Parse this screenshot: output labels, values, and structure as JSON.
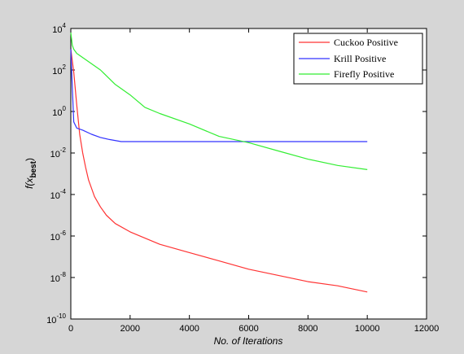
{
  "chart_data": {
    "type": "line",
    "title": "",
    "xlabel": "No. of Iterations",
    "ylabel": "f(x_best)",
    "ylabel_main": "f(x",
    "ylabel_sub": "best",
    "ylabel_close": ")",
    "xscale": "linear",
    "yscale": "log",
    "xlim": [
      0,
      12000
    ],
    "ylim_exp": [
      -10,
      4
    ],
    "x_ticks": [
      0,
      2000,
      4000,
      6000,
      8000,
      10000,
      12000
    ],
    "y_tick_exponents": [
      -10,
      -8,
      -6,
      -4,
      -2,
      0,
      2,
      4
    ],
    "y_tick_base": "10",
    "grid": false,
    "legend_position": "top-right",
    "series": [
      {
        "name": "Cuckoo Positive",
        "color": "#ff3333",
        "x": [
          0,
          100,
          200,
          300,
          400,
          500,
          600,
          800,
          1000,
          1200,
          1500,
          2000,
          2500,
          3000,
          4000,
          5000,
          6000,
          7000,
          8000,
          9000,
          10000
        ],
        "log10_y": [
          3.0,
          1.9,
          0.3,
          -1.1,
          -2.0,
          -2.7,
          -3.3,
          -4.1,
          -4.6,
          -5.0,
          -5.4,
          -5.8,
          -6.1,
          -6.4,
          -6.8,
          -7.2,
          -7.6,
          -7.9,
          -8.2,
          -8.4,
          -8.7
        ]
      },
      {
        "name": "Krill Positive",
        "color": "#3333ff",
        "x": [
          0,
          50,
          100,
          200,
          400,
          700,
          1000,
          1300,
          1700,
          2000,
          3000,
          4000,
          5000,
          6000,
          7000,
          8000,
          9000,
          10000
        ],
        "log10_y": [
          3.0,
          1.2,
          -0.5,
          -0.8,
          -0.9,
          -1.1,
          -1.25,
          -1.35,
          -1.45,
          -1.45,
          -1.45,
          -1.45,
          -1.45,
          -1.45,
          -1.45,
          -1.45,
          -1.45,
          -1.45
        ]
      },
      {
        "name": "Firefly Positive",
        "color": "#33ee33",
        "x": [
          0,
          50,
          100,
          200,
          500,
          1000,
          1500,
          2000,
          2500,
          3000,
          4000,
          5000,
          6000,
          7000,
          8000,
          9000,
          10000
        ],
        "log10_y": [
          3.8,
          3.2,
          3.0,
          2.8,
          2.5,
          2.0,
          1.3,
          0.8,
          0.2,
          -0.1,
          -0.6,
          -1.2,
          -1.5,
          -1.9,
          -2.3,
          -2.6,
          -2.8
        ]
      }
    ]
  }
}
